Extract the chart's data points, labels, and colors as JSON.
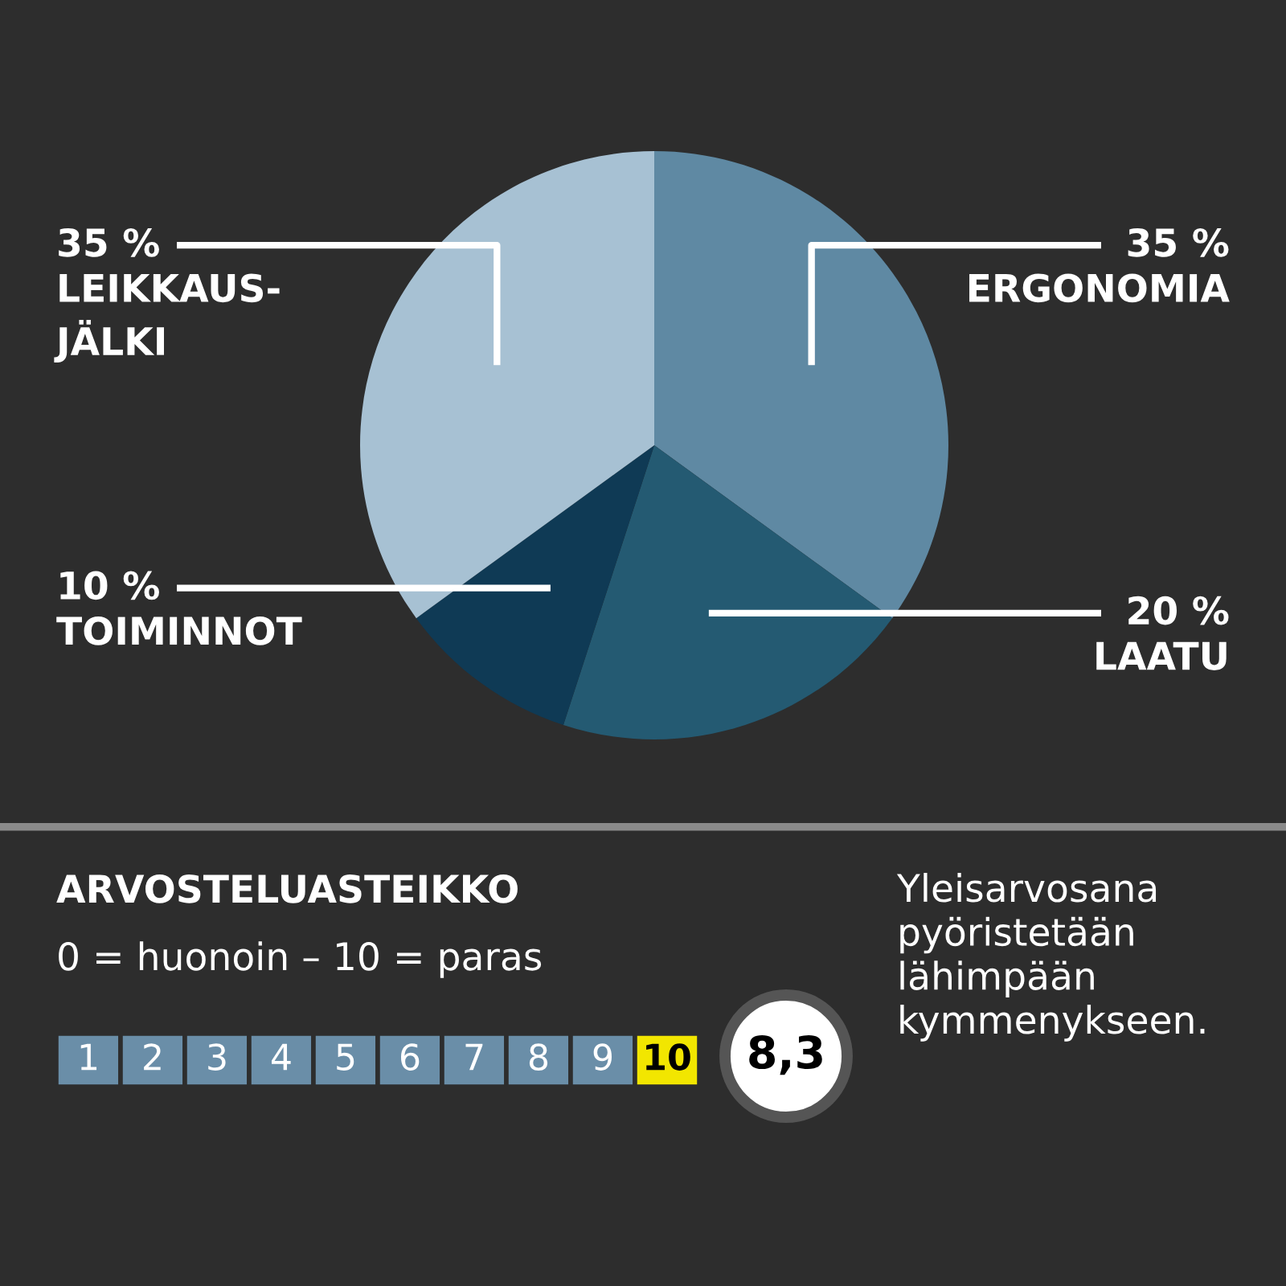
{
  "chart_data": [
    {
      "type": "pie",
      "categories": [
        "ERGONOMIA",
        "LAATU",
        "TOIMINNOT",
        "LEIKKAUS-\nJÄLKI"
      ],
      "values": [
        35,
        20,
        10,
        35
      ],
      "colors": [
        "#5f89a3",
        "#245a72",
        "#0f3a55",
        "#a7c1d3"
      ],
      "value_labels": [
        "35 %",
        "20 %",
        "10 %",
        "35 %"
      ]
    },
    {
      "type": "heatmap",
      "title": "ARVOSTELUASTEIKKO",
      "subtitle": "0 = huonoin – 10 = paras",
      "categories": [
        null,
        null,
        null,
        null,
        null,
        null,
        null,
        null,
        null,
        null
      ],
      "y_categories": [
        null
      ],
      "cells": [
        [
          1,
          2,
          3,
          4,
          5,
          6,
          7,
          8,
          9,
          10
        ]
      ],
      "data_labels": true,
      "colors": [
        "#6a8ea8",
        "#6a8ea8",
        "#6a8ea8",
        "#6a8ea8",
        "#6a8ea8",
        "#6a8ea8",
        "#6a8ea8",
        "#6a8ea8",
        "#6a8ea8",
        "#f2e600"
      ],
      "annotations": [
        "8,3",
        "Yleisarvosana\npyöristetään\nlähimpään\nkymmenykseen."
      ]
    }
  ]
}
